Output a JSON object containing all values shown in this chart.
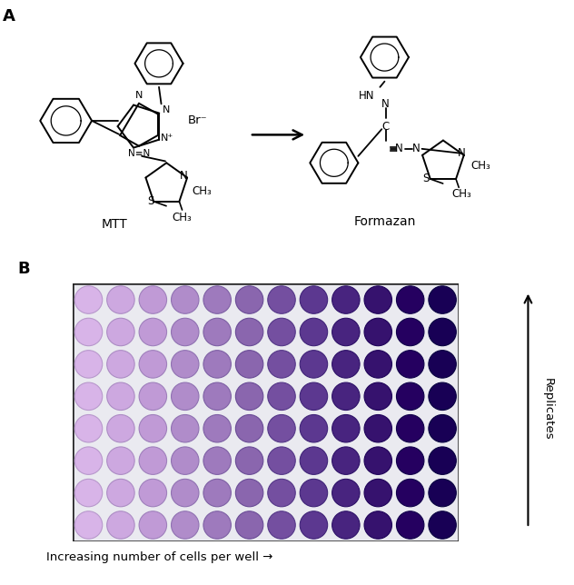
{
  "panel_a_label": "A",
  "panel_b_label": "B",
  "n_rows": 8,
  "n_cols": 12,
  "xlabel": "Increasing number of cells per well →",
  "ylabel": "Replicates",
  "plate_bg": "#eaeaf2",
  "border_color": "#222222",
  "col_colors": [
    "#d8b0e8",
    "#d0a8e2",
    "#c49ad8",
    "#b88cce",
    "#a87cc4",
    "#9068b8",
    "#7850aa",
    "#603898",
    "#4a2090",
    "#380888",
    "#280080",
    "#1a0078"
  ],
  "col_edge_colors": [
    "#b090c8",
    "#a888c0",
    "#9878b8",
    "#8868b0",
    "#7858a8",
    "#6045a0",
    "#4830908",
    "#382888",
    "#2c1880",
    "#200878",
    "#160070",
    "#100068"
  ],
  "fig_width": 6.32,
  "fig_height": 6.44,
  "dpi": 100
}
